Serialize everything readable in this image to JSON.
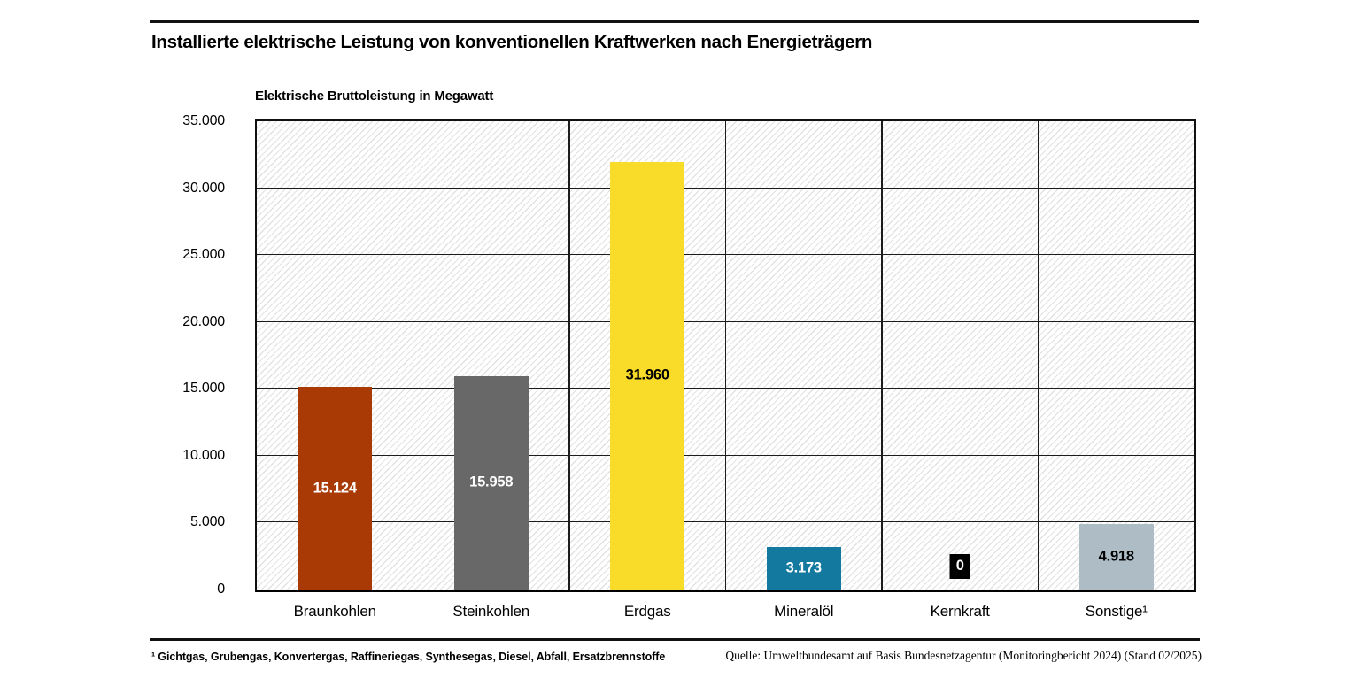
{
  "footer": {
    "footnote": "¹ Gichtgas, Grubengas, Konvertergas, Raffineriegas, Synthesegas, Diesel, Abfall, Ersatzbrennstoffe",
    "source": "Quelle: Umweltbundesamt auf Basis Bundesnetzagentur (Monitoringbericht 2024) (Stand 02/2025)"
  },
  "chart_data": {
    "type": "bar",
    "title": "Installierte elektrische Leistung von konventionellen Kraftwerken nach Energieträgern",
    "ylabel": "Elektrische Bruttoleistung in Megawatt",
    "xlabel": "",
    "categories": [
      "Braunkohlen",
      "Steinkohlen",
      "Erdgas",
      "Mineralöl",
      "Kernkraft",
      "Sonstige¹"
    ],
    "values": [
      15124,
      15958,
      31960,
      3173,
      0,
      4918
    ],
    "value_labels": [
      "15.124",
      "15.958",
      "31.960",
      "3.173",
      "0",
      "4.918"
    ],
    "bar_colors": [
      "#a93a05",
      "#686868",
      "#f9dc29",
      "#13799e",
      "#000000",
      "#aebdc5"
    ],
    "value_label_colors": [
      "#ffffff",
      "#ffffff",
      "#000000",
      "#ffffff",
      "#ffffff",
      "#000000"
    ],
    "ylim": [
      0,
      35000
    ],
    "ytick_values": [
      0,
      5000,
      10000,
      15000,
      20000,
      25000,
      30000,
      35000
    ],
    "ytick_labels": [
      "0",
      "5.000",
      "10.000",
      "15.000",
      "20.000",
      "25.000",
      "30.000",
      "35.000"
    ],
    "grid": true,
    "grid_color": "#1c1c1c",
    "plot_background": "white-diagonal-hatch",
    "legend_position": "none"
  }
}
